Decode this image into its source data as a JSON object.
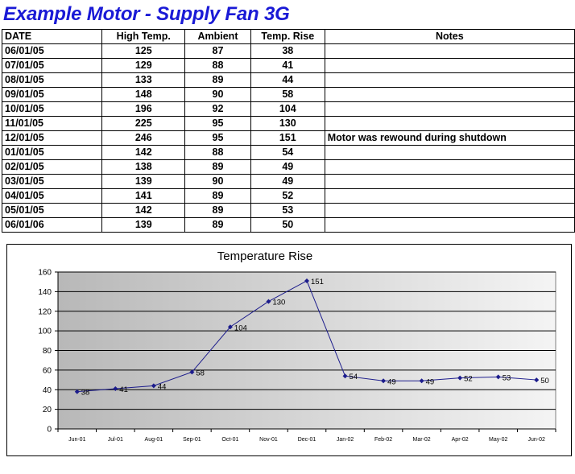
{
  "page": {
    "title": "Example Motor - Supply Fan 3G"
  },
  "table": {
    "headers": [
      "DATE",
      "High Temp.",
      "Ambient",
      "Temp. Rise",
      "Notes"
    ],
    "rows": [
      [
        "06/01/05",
        "125",
        "87",
        "38",
        ""
      ],
      [
        "07/01/05",
        "129",
        "88",
        "41",
        ""
      ],
      [
        "08/01/05",
        "133",
        "89",
        "44",
        ""
      ],
      [
        "09/01/05",
        "148",
        "90",
        "58",
        ""
      ],
      [
        "10/01/05",
        "196",
        "92",
        "104",
        ""
      ],
      [
        "11/01/05",
        "225",
        "95",
        "130",
        ""
      ],
      [
        "12/01/05",
        "246",
        "95",
        "151",
        "Motor was rewound during shutdown"
      ],
      [
        "01/01/05",
        "142",
        "88",
        "54",
        ""
      ],
      [
        "02/01/05",
        "138",
        "89",
        "49",
        ""
      ],
      [
        "03/01/05",
        "139",
        "90",
        "49",
        ""
      ],
      [
        "04/01/05",
        "141",
        "89",
        "52",
        ""
      ],
      [
        "05/01/05",
        "142",
        "89",
        "53",
        ""
      ],
      [
        "06/01/06",
        "139",
        "89",
        "50",
        ""
      ]
    ]
  },
  "chart_data": {
    "type": "line",
    "title": "Temperature Rise",
    "categories": [
      "Jun-01",
      "Jul-01",
      "Aug-01",
      "Sep-01",
      "Oct-01",
      "Nov-01",
      "Dec-01",
      "Jan-02",
      "Feb-02",
      "Mar-02",
      "Apr-02",
      "May-02",
      "Jun-02"
    ],
    "series": [
      {
        "values": [
          38,
          41,
          44,
          58,
          104,
          130,
          151,
          54,
          49,
          49,
          52,
          53,
          50
        ]
      }
    ],
    "data_labels": [
      "38",
      "41",
      "44",
      "58",
      "104",
      "130",
      "151",
      "54",
      "49",
      "49",
      "52",
      "53",
      "50"
    ],
    "y_ticks": [
      "0",
      "20",
      "40",
      "60",
      "80",
      "100",
      "120",
      "140",
      "160"
    ],
    "ylim": [
      0,
      160
    ],
    "grid": true,
    "legend": "none",
    "colors": {
      "line": "#1c1c8c",
      "grid": "#000000",
      "plot_bg_dark": "#b8b8b8",
      "plot_bg_light": "#f4f4f4"
    }
  }
}
